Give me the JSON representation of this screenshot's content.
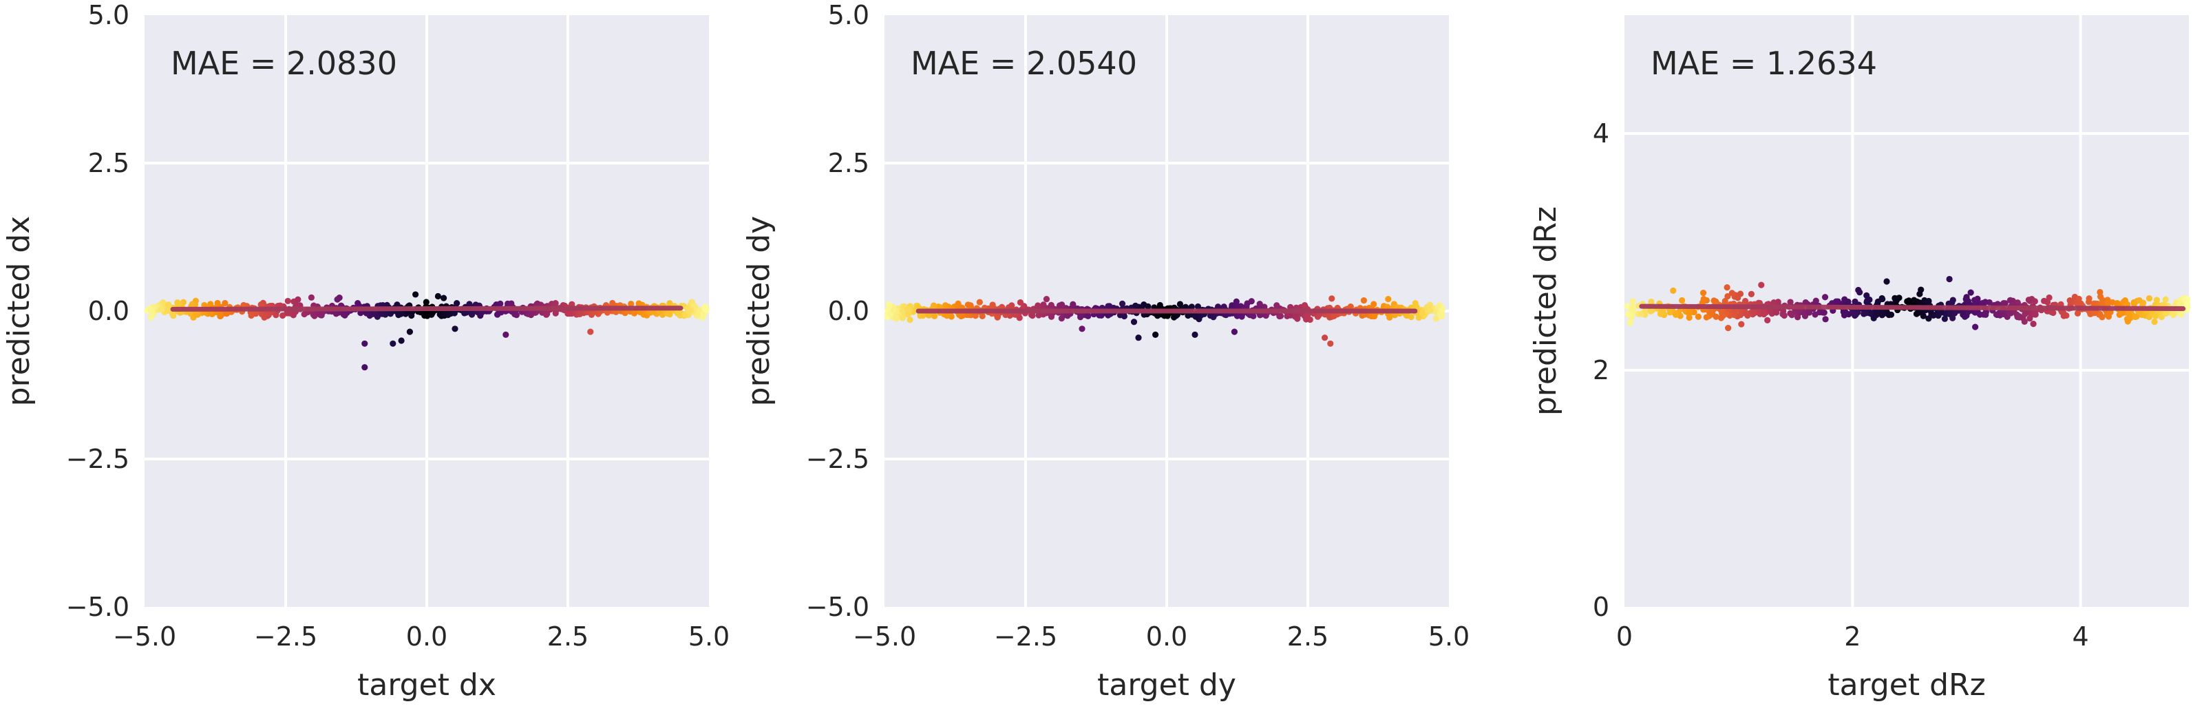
{
  "chart_data": [
    {
      "type": "scatter",
      "annotation": "MAE = 2.0830",
      "xlabel": "target dx",
      "ylabel": "predicted dx",
      "xlim": [
        -5.0,
        5.0
      ],
      "ylim": [
        -5.0,
        5.0
      ],
      "xticks": [
        -5.0,
        -2.5,
        0.0,
        2.5,
        5.0
      ],
      "yticks": [
        -5.0,
        -2.5,
        0.0,
        2.5,
        5.0
      ],
      "xtick_labels": [
        "−5.0",
        "−2.5",
        "0.0",
        "2.5",
        "5.0"
      ],
      "ytick_labels": [
        "−5.0",
        "−2.5",
        "0.0",
        "2.5",
        "5.0"
      ],
      "grid": true,
      "colormap": "inferno",
      "points": {
        "x_range": [
          -4.95,
          4.95
        ],
        "y_center": 0.02,
        "y_spread": 0.12,
        "count": 700,
        "outliers": [
          [
            -1.1,
            -0.95
          ],
          [
            -1.1,
            -0.55
          ],
          [
            -0.6,
            -0.55
          ],
          [
            -0.45,
            -0.5
          ],
          [
            -0.3,
            -0.35
          ],
          [
            0.5,
            -0.3
          ],
          [
            1.4,
            -0.4
          ],
          [
            2.9,
            -0.35
          ],
          [
            -0.2,
            0.28
          ],
          [
            0.2,
            0.25
          ],
          [
            0.3,
            0.22
          ]
        ]
      },
      "trend": {
        "x": [
          -4.5,
          4.5
        ],
        "y": [
          0.03,
          0.05
        ]
      }
    },
    {
      "type": "scatter",
      "annotation": "MAE = 2.0540",
      "xlabel": "target dy",
      "ylabel": "predicted dy",
      "xlim": [
        -5.0,
        5.0
      ],
      "ylim": [
        -5.0,
        5.0
      ],
      "xticks": [
        -5.0,
        -2.5,
        0.0,
        2.5,
        5.0
      ],
      "yticks": [
        -5.0,
        -2.5,
        0.0,
        2.5,
        5.0
      ],
      "xtick_labels": [
        "−5.0",
        "−2.5",
        "0.0",
        "2.5",
        "5.0"
      ],
      "ytick_labels": [
        "−5.0",
        "−2.5",
        "0.0",
        "2.5",
        "5.0"
      ],
      "grid": true,
      "colormap": "inferno",
      "points": {
        "x_range": [
          -4.95,
          4.95
        ],
        "y_center": 0.0,
        "y_spread": 0.12,
        "count": 700,
        "outliers": [
          [
            -0.5,
            -0.45
          ],
          [
            -0.2,
            -0.4
          ],
          [
            0.5,
            -0.4
          ],
          [
            1.2,
            -0.35
          ],
          [
            2.9,
            -0.55
          ],
          [
            2.8,
            -0.45
          ],
          [
            -1.5,
            -0.3
          ]
        ]
      },
      "trend": {
        "x": [
          -4.4,
          4.4
        ],
        "y": [
          0.0,
          0.0
        ]
      }
    },
    {
      "type": "scatter",
      "annotation": "MAE = 1.2634",
      "xlabel": "target dRz",
      "ylabel": "predicted dRz",
      "xlim": [
        0,
        4.95
      ],
      "ylim": [
        0,
        5.0
      ],
      "xticks": [
        0,
        2,
        4
      ],
      "yticks": [
        0,
        2,
        4
      ],
      "xtick_labels": [
        "0",
        "2",
        "4"
      ],
      "ytick_labels": [
        "0",
        "2",
        "4"
      ],
      "grid": true,
      "colormap": "inferno",
      "points": {
        "x_range": [
          0.02,
          4.95
        ],
        "y_center": 2.52,
        "y_spread": 0.1,
        "count": 700,
        "outliers": [
          [
            2.3,
            2.75
          ],
          [
            2.85,
            2.77
          ],
          [
            1.2,
            2.72
          ],
          [
            0.9,
            2.7
          ],
          [
            2.6,
            2.68
          ],
          [
            0.05,
            2.4
          ]
        ]
      },
      "trend": {
        "x": [
          0.15,
          4.9
        ],
        "y": [
          2.54,
          2.52
        ]
      }
    }
  ],
  "style": {
    "axes_bg": "#eaeaf2",
    "grid_color": "#ffffff",
    "trend_color": "#a33a5c",
    "text_color": "#262626"
  }
}
